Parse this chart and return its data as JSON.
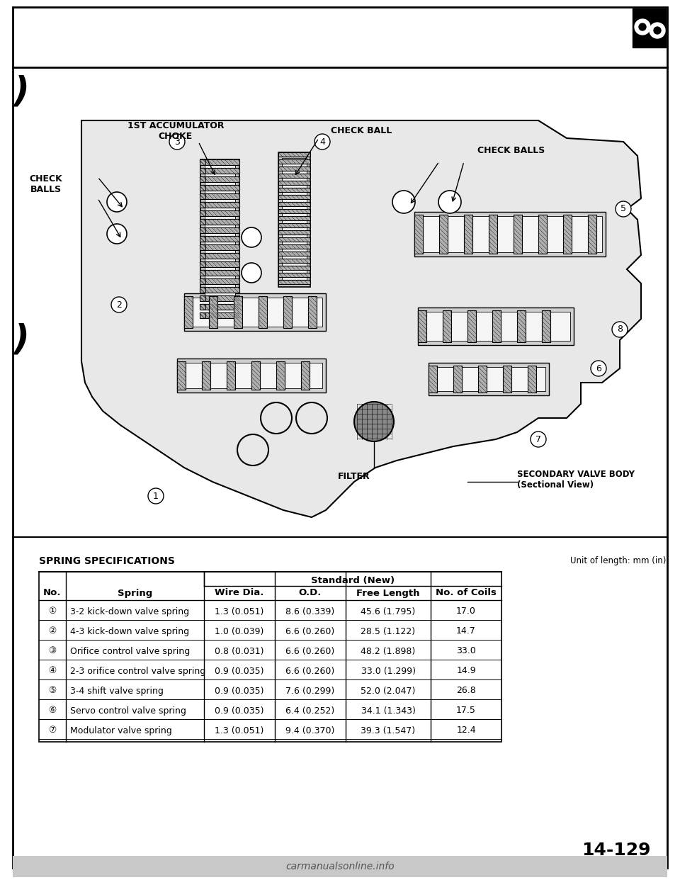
{
  "page_bg": "#ffffff",
  "border_color": "#000000",
  "page_number": "14-129",
  "gear_icon_bg": "#000000",
  "diagram_labels": {
    "check_balls_left": "CHECK\nBALLS",
    "first_acc_choke": "1ST ACCUMULATOR\nCHOKE",
    "check_ball": "CHECK BALL",
    "check_balls_right": "CHECK BALLS",
    "secondary_valve_body": "SECONDARY VALVE BODY\n(Sectional View)",
    "filter": "FILTER"
  },
  "circled_numbers": [
    1,
    2,
    3,
    4,
    5,
    6,
    7,
    8
  ],
  "table_title": "SPRING SPECIFICATIONS",
  "table_unit": "Unit of length: mm (in)",
  "table_headers": [
    "No.",
    "Spring",
    "Wire Dia.",
    "O.D.",
    "Free Length",
    "No. of Coils"
  ],
  "table_subheader": "Standard (New)",
  "table_rows": [
    [
      "①",
      "3-2 kick-down valve spring",
      "1.3 (0.051)",
      "8.6 (0.339)",
      "45.6 (1.795)",
      "17.0"
    ],
    [
      "②",
      "4-3 kick-down valve spring",
      "1.0 (0.039)",
      "6.6 (0.260)",
      "28.5 (1.122)",
      "14.7"
    ],
    [
      "③",
      "Orifice control valve spring",
      "0.8 (0.031)",
      "6.6 (0.260)",
      "48.2 (1.898)",
      "33.0"
    ],
    [
      "④",
      "2-3 orifice control valve spring",
      "0.9 (0.035)",
      "6.6 (0.260)",
      "33.0 (1.299)",
      "14.9"
    ],
    [
      "⑤",
      "3-4 shift valve spring",
      "0.9 (0.035)",
      "7.6 (0.299)",
      "52.0 (2.047)",
      "26.8"
    ],
    [
      "⑥",
      "Servo control valve spring",
      "0.9 (0.035)",
      "6.4 (0.252)",
      "34.1 (1.343)",
      "17.5"
    ],
    [
      "⑦",
      "Modulator valve spring",
      "1.3 (0.051)",
      "9.4 (0.370)",
      "39.3 (1.547)",
      "12.4"
    ]
  ]
}
